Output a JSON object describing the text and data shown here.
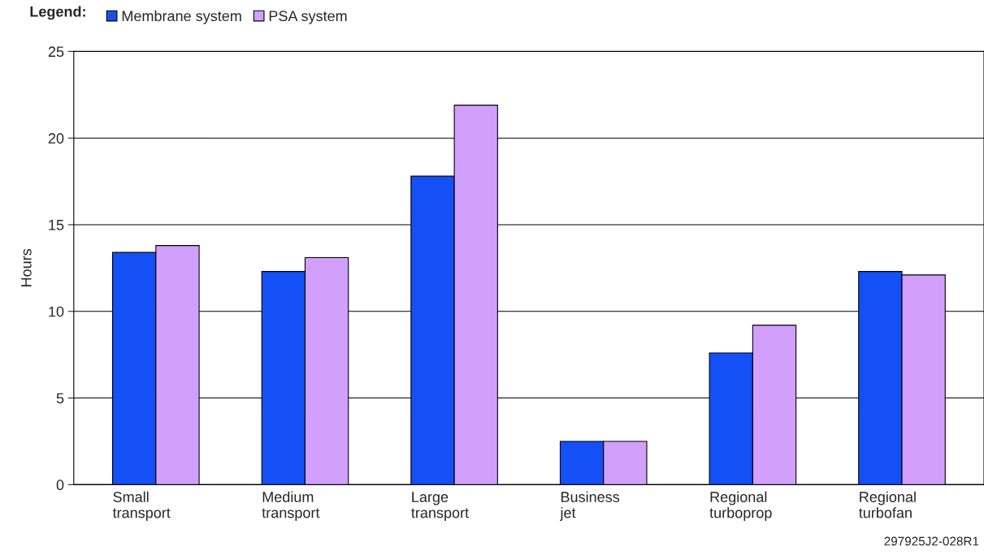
{
  "chart_data": {
    "type": "bar",
    "ylabel": "Hours",
    "legend_title": "Legend:",
    "categories": [
      "Small\ntransport",
      "Medium\ntransport",
      "Large\ntransport",
      "Business\njet",
      "Regional\nturboprop",
      "Regional\nturbofan"
    ],
    "series": [
      {
        "name": "Membrane system",
        "color": "#1450f5",
        "values": [
          13.4,
          12.3,
          17.8,
          2.5,
          7.6,
          12.3
        ]
      },
      {
        "name": "PSA system",
        "color": "#d29ffc",
        "values": [
          13.8,
          13.1,
          21.9,
          2.5,
          9.2,
          12.1
        ]
      }
    ],
    "ylim": [
      0,
      25
    ],
    "yticks": [
      0,
      5,
      10,
      15,
      20,
      25
    ],
    "grid": "y",
    "legend": "top left",
    "annotations": [
      "297925J2-028R1"
    ]
  }
}
